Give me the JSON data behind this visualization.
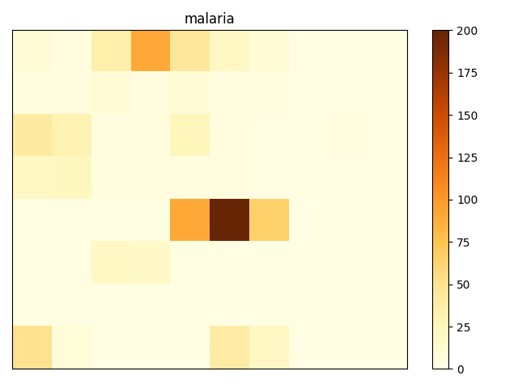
{
  "title": "malaria",
  "grid": [
    [
      10,
      5,
      35,
      90,
      45,
      20,
      10,
      2,
      2,
      2
    ],
    [
      5,
      5,
      10,
      5,
      10,
      5,
      5,
      2,
      2,
      2
    ],
    [
      40,
      30,
      5,
      5,
      25,
      5,
      2,
      2,
      5,
      2
    ],
    [
      20,
      22,
      5,
      5,
      5,
      5,
      2,
      2,
      2,
      2
    ],
    [
      2,
      2,
      2,
      2,
      90,
      200,
      65,
      2,
      2,
      2
    ],
    [
      2,
      2,
      20,
      18,
      2,
      2,
      2,
      2,
      2,
      2
    ],
    [
      2,
      2,
      2,
      2,
      2,
      2,
      2,
      2,
      2,
      2
    ],
    [
      50,
      8,
      2,
      2,
      2,
      38,
      20,
      2,
      2,
      2
    ]
  ],
  "vmin": 0,
  "vmax": 200,
  "cmap": "YlOrBr",
  "colorbar_ticks": [
    0,
    25,
    50,
    75,
    100,
    125,
    150,
    175,
    200
  ],
  "title_fontsize": 12,
  "figsize": [
    6.4,
    4.8
  ],
  "dpi": 100
}
